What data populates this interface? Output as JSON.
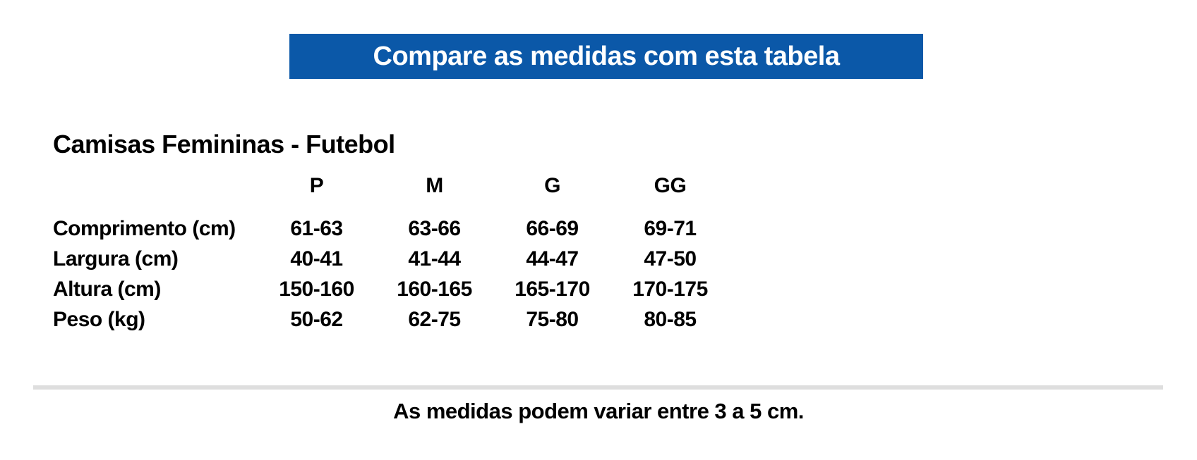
{
  "banner": {
    "text": "Compare as medidas com esta tabela",
    "bg_color": "#0B58A8",
    "text_color": "#FFFFFF"
  },
  "section": {
    "title": "Camisas Femininas - Futebol"
  },
  "size_table": {
    "columns": [
      "P",
      "M",
      "G",
      "GG"
    ],
    "rows": [
      {
        "label": "Comprimento (cm)",
        "values": [
          "61-63",
          "63-66",
          "66-69",
          "69-71"
        ]
      },
      {
        "label": "Largura (cm)",
        "values": [
          "40-41",
          "41-44",
          "44-47",
          "47-50"
        ]
      },
      {
        "label": "Altura (cm)",
        "values": [
          "150-160",
          "160-165",
          "165-170",
          "170-175"
        ]
      },
      {
        "label": "Peso (kg)",
        "values": [
          "50-62",
          "62-75",
          "75-80",
          "80-85"
        ]
      }
    ]
  },
  "footer": {
    "note": "As medidas podem variar entre 3 a 5 cm."
  }
}
